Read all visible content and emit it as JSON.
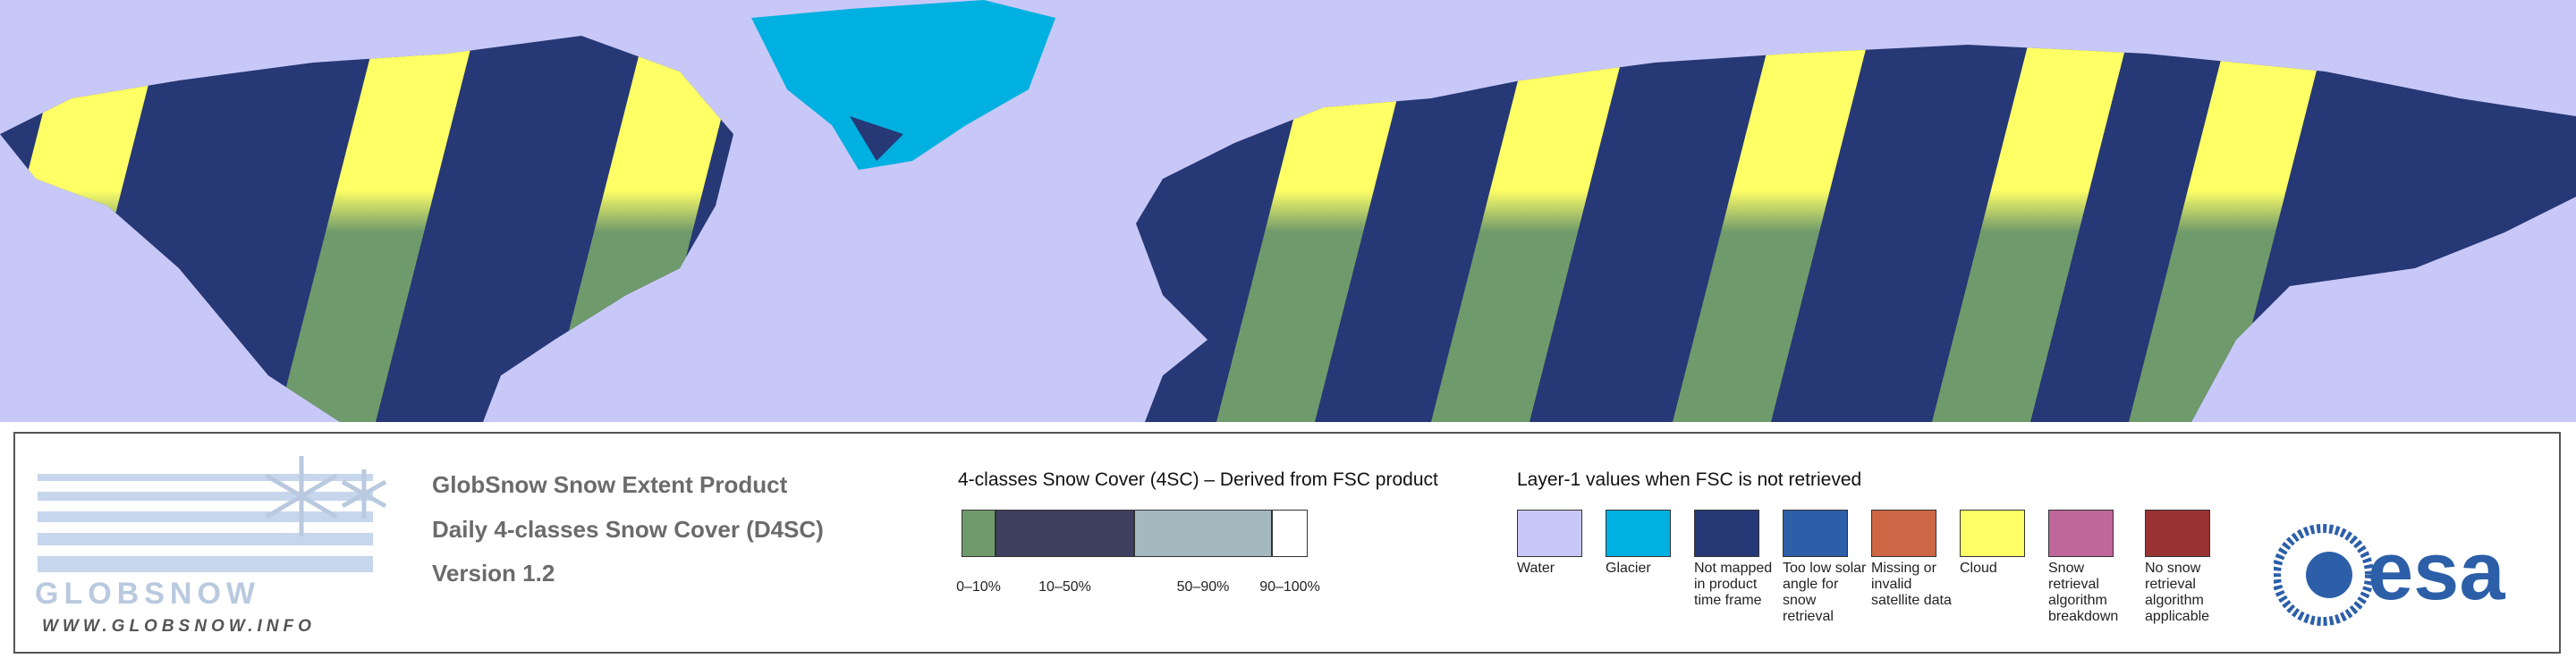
{
  "header": {
    "title": "GlobSnow Snow Extent Product",
    "subtitle": "Daily 4-classes Snow Cover (D4SC)",
    "version": "Version 1.2"
  },
  "logo": {
    "name": "GLOBSNOW",
    "url": "WWW.GLOBSNOW.INFO",
    "agency": "esa"
  },
  "snow_cover_legend": {
    "title": "4-classes Snow Cover (4SC) – Derived from FSC product",
    "classes": [
      {
        "label": "0–10%",
        "color": "#6f9a6b"
      },
      {
        "label": "10–50%",
        "color": "#3f3f5f"
      },
      {
        "label": "50–90%",
        "color": "#a3b9bf"
      },
      {
        "label": "90–100%",
        "color": "#ffffff"
      }
    ]
  },
  "layer1_legend": {
    "title": "Layer-1 values when FSC is not retrieved",
    "items": [
      {
        "label": "Water",
        "color": "#c8c8f8"
      },
      {
        "label": "Glacier",
        "color": "#00b0e0"
      },
      {
        "label": "Not mapped in product time frame",
        "color": "#263875"
      },
      {
        "label": "Too low solar angle for snow retrieval",
        "color": "#2c5fa8"
      },
      {
        "label": "Missing or invalid satellite data",
        "color": "#cc6644"
      },
      {
        "label": "Cloud",
        "color": "#ffff66"
      },
      {
        "label": "Snow retrieval algorithm breakdown",
        "color": "#c0669a"
      },
      {
        "label": "No snow retrieval algorithm applicable",
        "color": "#993333"
      }
    ]
  }
}
